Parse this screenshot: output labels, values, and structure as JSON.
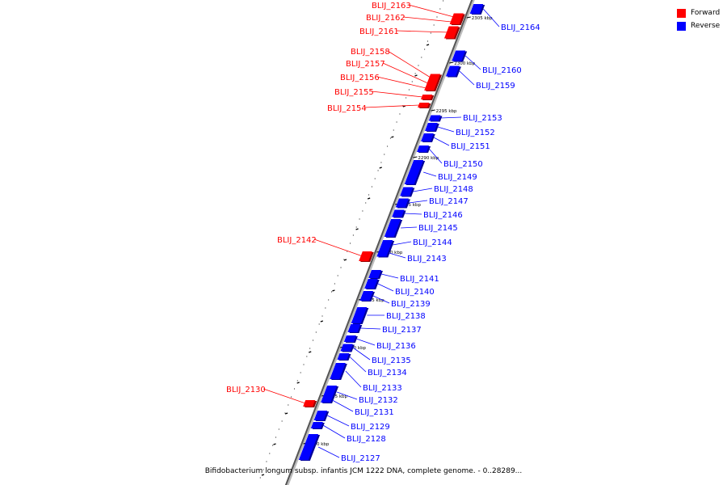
{
  "legend": {
    "forward": {
      "label": "Forward",
      "color": "#ff0000"
    },
    "reverse": {
      "label": "Reverse",
      "color": "#0000ff"
    }
  },
  "caption": "Bifidobacterium longum subsp. infantis JCM 1222 DNA, complete genome. - 0..28289...",
  "ticks": [
    "2305 kbp",
    "2300 kbp",
    "2295 kbp",
    "2290 kbp",
    "2285 kbp",
    "2280 kbp",
    "2275 kbp",
    "2270 kbp",
    "2265 kbp",
    "2260 kbp"
  ],
  "genes": [
    {
      "name": "BLIJ_2164",
      "strand": "reverse"
    },
    {
      "name": "BLIJ_2163",
      "strand": "forward"
    },
    {
      "name": "BLIJ_2162",
      "strand": "forward"
    },
    {
      "name": "BLIJ_2161",
      "strand": "forward"
    },
    {
      "name": "BLIJ_2160",
      "strand": "reverse"
    },
    {
      "name": "BLIJ_2159",
      "strand": "reverse"
    },
    {
      "name": "BLIJ_2158",
      "strand": "forward"
    },
    {
      "name": "BLIJ_2157",
      "strand": "forward"
    },
    {
      "name": "BLIJ_2156",
      "strand": "forward"
    },
    {
      "name": "BLIJ_2155",
      "strand": "forward"
    },
    {
      "name": "BLIJ_2154",
      "strand": "forward"
    },
    {
      "name": "BLIJ_2153",
      "strand": "reverse"
    },
    {
      "name": "BLIJ_2152",
      "strand": "reverse"
    },
    {
      "name": "BLIJ_2151",
      "strand": "reverse"
    },
    {
      "name": "BLIJ_2150",
      "strand": "reverse"
    },
    {
      "name": "BLIJ_2149",
      "strand": "reverse"
    },
    {
      "name": "BLIJ_2148",
      "strand": "reverse"
    },
    {
      "name": "BLIJ_2147",
      "strand": "reverse"
    },
    {
      "name": "BLIJ_2146",
      "strand": "reverse"
    },
    {
      "name": "BLIJ_2145",
      "strand": "reverse"
    },
    {
      "name": "BLIJ_2144",
      "strand": "reverse"
    },
    {
      "name": "BLIJ_2143",
      "strand": "reverse"
    },
    {
      "name": "BLIJ_2142",
      "strand": "forward"
    },
    {
      "name": "BLIJ_2141",
      "strand": "reverse"
    },
    {
      "name": "BLIJ_2140",
      "strand": "reverse"
    },
    {
      "name": "BLIJ_2139",
      "strand": "reverse"
    },
    {
      "name": "BLIJ_2138",
      "strand": "reverse"
    },
    {
      "name": "BLIJ_2137",
      "strand": "reverse"
    },
    {
      "name": "BLIJ_2136",
      "strand": "reverse"
    },
    {
      "name": "BLIJ_2135",
      "strand": "reverse"
    },
    {
      "name": "BLIJ_2134",
      "strand": "reverse"
    },
    {
      "name": "BLIJ_2133",
      "strand": "reverse"
    },
    {
      "name": "BLIJ_2132",
      "strand": "reverse"
    },
    {
      "name": "BLIJ_2131",
      "strand": "reverse"
    },
    {
      "name": "BLIJ_2130",
      "strand": "forward"
    },
    {
      "name": "BLIJ_2129",
      "strand": "reverse"
    },
    {
      "name": "BLIJ_2128",
      "strand": "reverse"
    },
    {
      "name": "BLIJ_2127",
      "strand": "reverse"
    }
  ]
}
